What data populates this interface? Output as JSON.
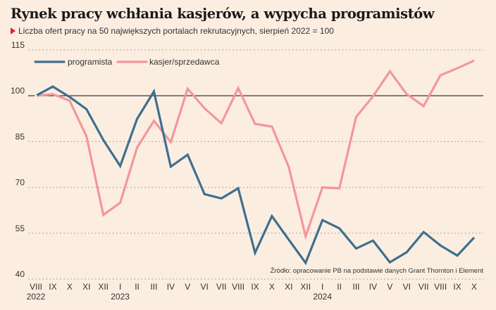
{
  "chart_data": {
    "type": "line",
    "title": "Rynek pracy wchłania kasjerów, a wypycha programistów",
    "subtitle": "Liczba ofert pracy na 50 największych portalach rekrutacyjnych, sierpień 2022 = 100",
    "source": "Źródło: opracowanie PB na podstawie danych Grant Thornton i Element",
    "xlabel": "",
    "ylabel": "",
    "ylim": [
      40,
      115
    ],
    "yticks": [
      40,
      55,
      70,
      85,
      100,
      115
    ],
    "reference_line": 100,
    "grid": true,
    "legend_position": "top-left",
    "categories": [
      "VIII",
      "IX",
      "X",
      "XI",
      "XII",
      "I",
      "II",
      "III",
      "IV",
      "V",
      "VI",
      "VII",
      "VIII",
      "IX",
      "X",
      "XI",
      "XII",
      "I",
      "II",
      "III",
      "IV",
      "V",
      "VI",
      "VII",
      "VIII",
      "IX",
      "X"
    ],
    "year_labels": [
      {
        "index": 0,
        "label": "2022"
      },
      {
        "index": 5,
        "label": "2023"
      },
      {
        "index": 17,
        "label": "2024"
      }
    ],
    "series": [
      {
        "name": "programista",
        "color": "#3f6f8f",
        "values": [
          100,
          103,
          99.6,
          95.6,
          85.5,
          77,
          92.4,
          101.4,
          76.8,
          80.7,
          67.8,
          66.4,
          69.7,
          48.6,
          60.6,
          52.9,
          45.3,
          59.3,
          56.6,
          50,
          52.6,
          45.5,
          48.8,
          55.4,
          51,
          47.7,
          53.6
        ]
      },
      {
        "name": "kasjer/sprzedawca",
        "color": "#f4969b",
        "values": [
          100,
          100.5,
          98.4,
          86.7,
          61,
          65,
          83,
          91.8,
          84.8,
          102.3,
          95.9,
          91,
          102.5,
          90.8,
          89.9,
          76.7,
          54,
          70,
          69.7,
          93.1,
          99.8,
          108,
          100.5,
          96.6,
          106.7,
          109,
          111.5
        ]
      }
    ]
  },
  "colors": {
    "background": "#fbeee1",
    "accent_marker": "#e3242b",
    "gridline": "#aaa39b",
    "reference_line": "#222222"
  }
}
